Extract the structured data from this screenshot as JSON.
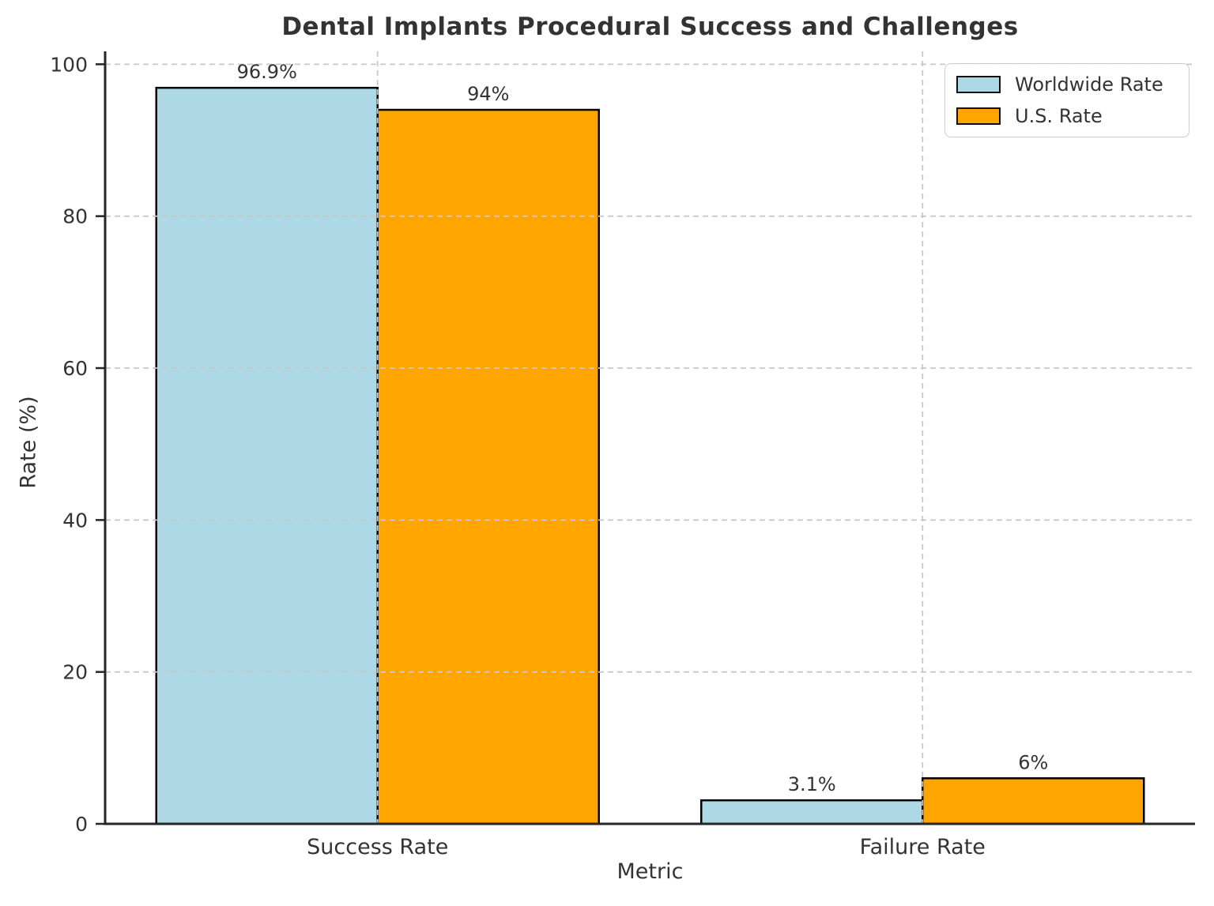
{
  "chart_data": {
    "type": "bar",
    "title": "Dental Implants Procedural Success and Challenges",
    "xlabel": "Metric",
    "ylabel": "Rate (%)",
    "categories": [
      "Success Rate",
      "Failure Rate"
    ],
    "series": [
      {
        "name": "Worldwide Rate",
        "color": "#ADD8E6",
        "values": [
          96.9,
          3.1
        ],
        "value_labels": [
          "96.9%",
          "3.1%"
        ]
      },
      {
        "name": "U.S. Rate",
        "color": "#FFA500",
        "values": [
          94,
          6
        ],
        "value_labels": [
          "94%",
          "6%"
        ]
      }
    ],
    "y_ticks": [
      0,
      20,
      40,
      60,
      80,
      100
    ],
    "y_tick_labels": [
      "0",
      "20",
      "40",
      "60",
      "80",
      "100"
    ],
    "ylim": [
      0,
      101.7
    ],
    "grid": true,
    "grid_color": "#c8c8c8",
    "grid_style": "dashed",
    "legend_position": "upper right",
    "bar_edge_color": "#000000",
    "spine_color": "#262626",
    "text_color": "#333333"
  }
}
